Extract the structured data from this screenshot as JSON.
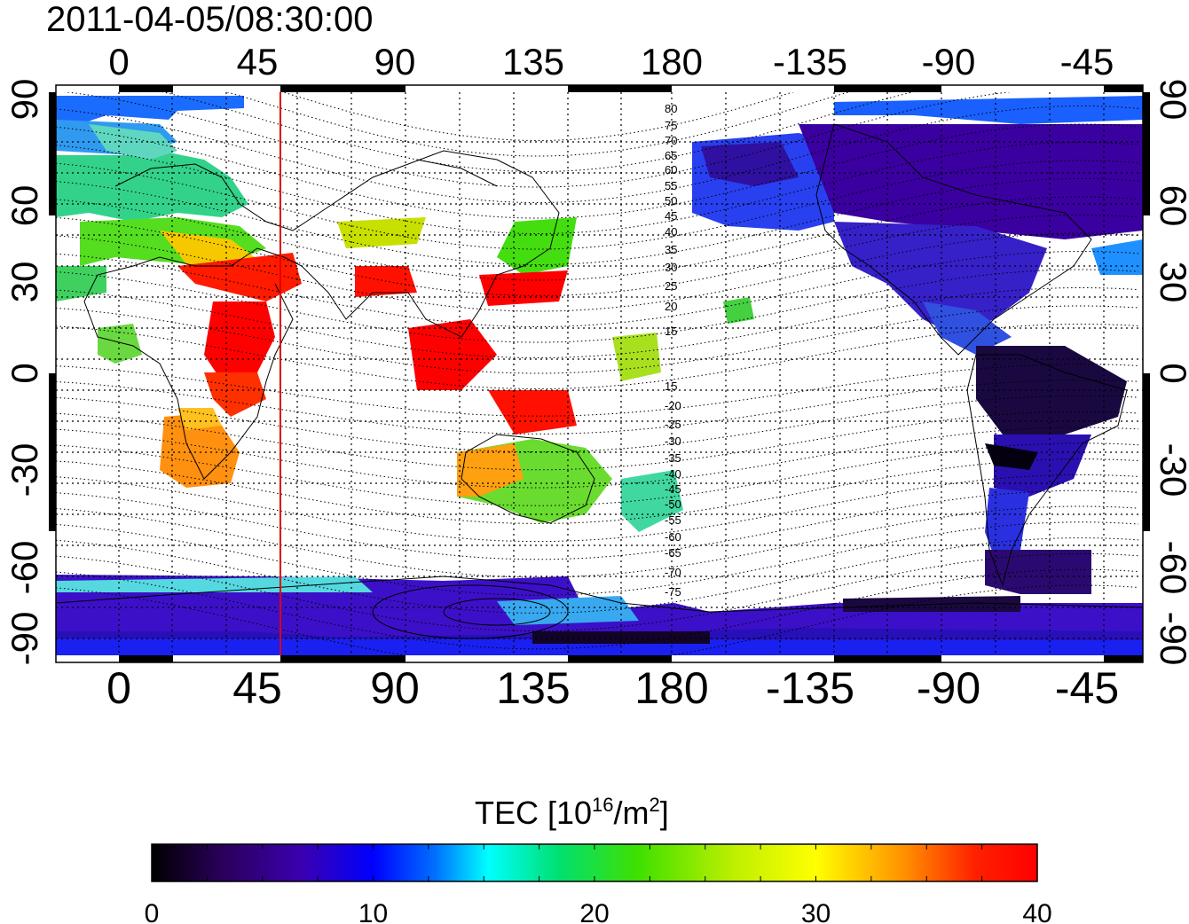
{
  "title": "2011-04-05/08:30:00",
  "map": {
    "top_lon_labels": [
      "0",
      "45",
      "90",
      "135",
      "180",
      "-135",
      "-90",
      "-45"
    ],
    "bottom_lon_labels": [
      "0",
      "45",
      "90",
      "135",
      "180",
      "-135",
      "-90",
      "-45"
    ],
    "left_lat_labels": [
      "90",
      "60",
      "30",
      "0",
      "-30",
      "-60",
      "-90"
    ],
    "right_lat_labels": [
      "90",
      "60",
      "30",
      "0",
      "-30",
      "-60",
      "-90"
    ],
    "contour_labels_north": [
      "80",
      "75",
      "70",
      "65",
      "60",
      "55",
      "50",
      "45",
      "40",
      "35",
      "30",
      "25",
      "20",
      "15"
    ],
    "contour_labels_south": [
      "15",
      "20",
      "25",
      "30",
      "35",
      "40",
      "45",
      "50",
      "55",
      "60",
      "65",
      "70",
      "75"
    ],
    "subsolar_line_lon": 52,
    "line_color": "#e00000"
  },
  "colorbar": {
    "title_main": "TEC  [10",
    "title_sup": "16",
    "title_unit": "/m",
    "title_sup2": "2",
    "title_end": "]",
    "tick_labels": [
      "0",
      "10",
      "20",
      "30",
      "40"
    ],
    "range": [
      0,
      40
    ],
    "colors": [
      "#000000",
      "#2a005a",
      "#3a00b0",
      "#0000ff",
      "#0090ff",
      "#00ffff",
      "#00e070",
      "#40e000",
      "#c0f000",
      "#ffff00",
      "#ff9000",
      "#ff2000",
      "#ff0000"
    ]
  }
}
